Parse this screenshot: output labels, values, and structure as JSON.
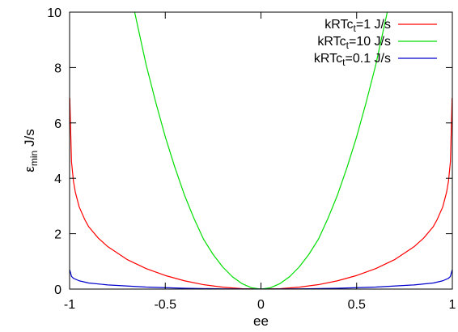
{
  "chart_data": {
    "type": "line",
    "title": "",
    "xlabel": "ee",
    "ylabel": {
      "symbol": "ε",
      "subscript": "min",
      "unit": "J/s"
    },
    "xlim": [
      -1,
      1
    ],
    "ylim": [
      0,
      10
    ],
    "grid": false,
    "legend_position": "top-right",
    "x_ticks": [
      {
        "value": -1,
        "label": "-1"
      },
      {
        "value": -0.5,
        "label": "-0.5"
      },
      {
        "value": 0,
        "label": "0"
      },
      {
        "value": 0.5,
        "label": "0.5"
      },
      {
        "value": 1,
        "label": "1"
      }
    ],
    "y_ticks": [
      {
        "value": 0,
        "label": "0"
      },
      {
        "value": 2,
        "label": "2"
      },
      {
        "value": 4,
        "label": "4"
      },
      {
        "value": 6,
        "label": "6"
      },
      {
        "value": 8,
        "label": "8"
      },
      {
        "value": 10,
        "label": "10"
      }
    ],
    "series": [
      {
        "legend": {
          "prefix": "kRTc",
          "subscript": "t",
          "suffix": "=1 J/s"
        },
        "color": "#ff0000",
        "x": [
          -0.999,
          -0.99,
          -0.98,
          -0.97,
          -0.95,
          -0.92,
          -0.9,
          -0.85,
          -0.8,
          -0.7,
          -0.6,
          -0.5,
          -0.4,
          -0.3,
          -0.2,
          -0.1,
          0,
          0.1,
          0.2,
          0.3,
          0.4,
          0.5,
          0.6,
          0.7,
          0.8,
          0.85,
          0.9,
          0.92,
          0.95,
          0.97,
          0.98,
          0.99,
          0.999
        ],
        "y": [
          6.9,
          4.6,
          3.9,
          3.5,
          2.97,
          2.5,
          2.25,
          1.84,
          1.53,
          1.07,
          0.74,
          0.49,
          0.3,
          0.16,
          0.07,
          0.016,
          0,
          0.016,
          0.07,
          0.16,
          0.3,
          0.49,
          0.74,
          1.07,
          1.53,
          1.84,
          2.25,
          2.5,
          2.97,
          3.5,
          3.9,
          4.6,
          6.9
        ]
      },
      {
        "legend": {
          "prefix": "kRTc",
          "subscript": "t",
          "suffix": "=10 J/s"
        },
        "color": "#00dd00",
        "x": [
          -0.66,
          -0.6,
          -0.55,
          -0.5,
          -0.45,
          -0.4,
          -0.35,
          -0.3,
          -0.25,
          -0.2,
          -0.15,
          -0.1,
          -0.05,
          0,
          0.05,
          0.1,
          0.15,
          0.2,
          0.25,
          0.3,
          0.35,
          0.4,
          0.45,
          0.5,
          0.55,
          0.6,
          0.66
        ],
        "y": [
          10,
          8.1,
          6.75,
          5.5,
          4.4,
          3.4,
          2.55,
          1.8,
          1.25,
          0.8,
          0.45,
          0.2,
          0.05,
          0,
          0.05,
          0.2,
          0.45,
          0.8,
          1.25,
          1.8,
          2.55,
          3.4,
          4.4,
          5.5,
          6.75,
          8.1,
          10
        ]
      },
      {
        "legend": {
          "prefix": "kRTc",
          "subscript": "t",
          "suffix": "=0.1 J/s"
        },
        "color": "#0000cc",
        "x": [
          -0.999,
          -0.99,
          -0.98,
          -0.95,
          -0.9,
          -0.8,
          -0.6,
          -0.4,
          -0.2,
          0,
          0.2,
          0.4,
          0.6,
          0.8,
          0.9,
          0.95,
          0.98,
          0.99,
          0.999
        ],
        "y": [
          0.69,
          0.46,
          0.39,
          0.3,
          0.22,
          0.15,
          0.074,
          0.03,
          0.007,
          0,
          0.007,
          0.03,
          0.074,
          0.15,
          0.22,
          0.3,
          0.39,
          0.46,
          0.69
        ]
      }
    ]
  }
}
